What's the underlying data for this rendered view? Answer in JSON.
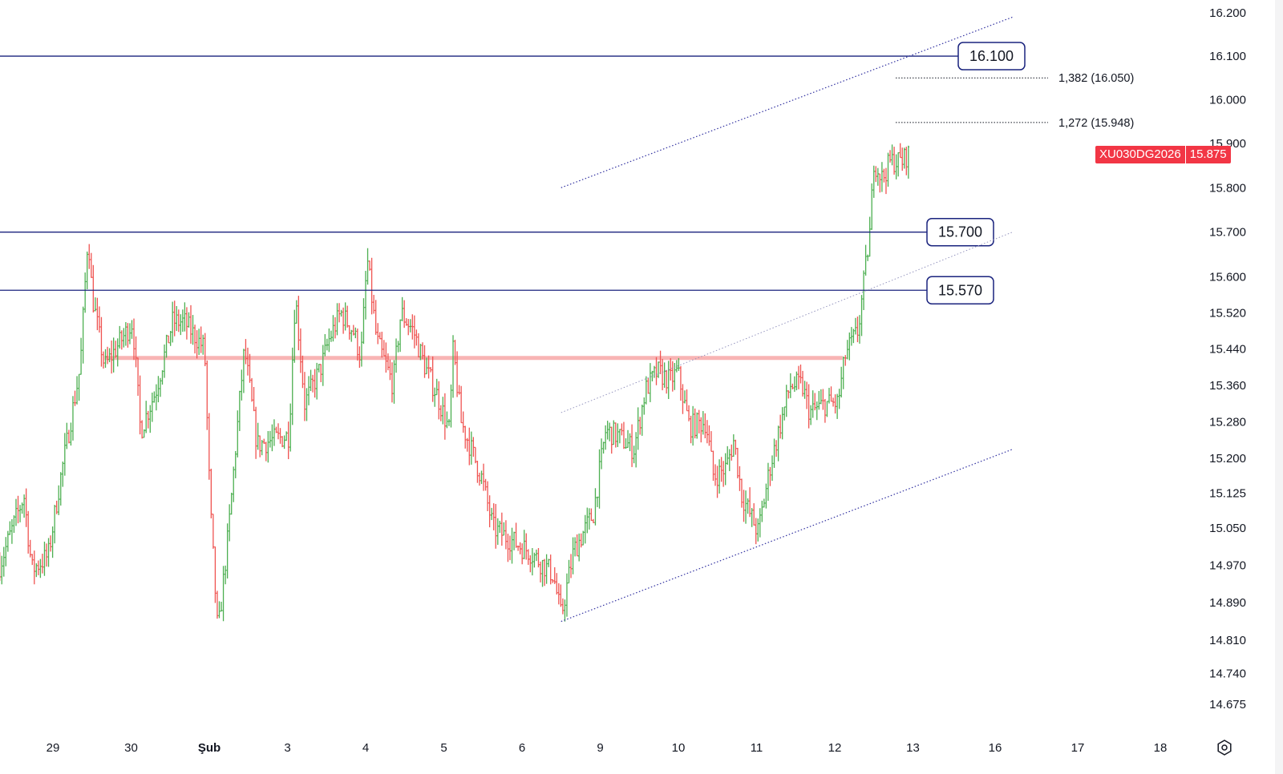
{
  "chart_data": {
    "type": "ohlc-bar",
    "symbol": "XU030DG2026",
    "last_price": "15.875",
    "y_scale": "log",
    "ylim": [
      14.64,
      16.22
    ],
    "y_ticks": [
      "16.200",
      "16.100",
      "16.000",
      "15.900",
      "15.800",
      "15.700",
      "15.600",
      "15.520",
      "15.440",
      "15.360",
      "15.280",
      "15.200",
      "15.125",
      "15.050",
      "14.970",
      "14.890",
      "14.810",
      "14.740",
      "14.675"
    ],
    "x_ticks": [
      "29",
      "30",
      "Şub",
      "3",
      "4",
      "5",
      "6",
      "9",
      "10",
      "11",
      "12",
      "13",
      "16",
      "17",
      "18"
    ],
    "price_path": [
      [
        -0.68,
        14.97
      ],
      [
        -0.37,
        15.12
      ],
      [
        -0.27,
        14.96
      ],
      [
        -0.06,
        14.99
      ],
      [
        0.09,
        15.15
      ],
      [
        0.35,
        15.4
      ],
      [
        0.45,
        15.7
      ],
      [
        0.5,
        15.56
      ],
      [
        0.66,
        15.4
      ],
      [
        1.02,
        15.5
      ],
      [
        1.12,
        15.26
      ],
      [
        1.32,
        15.35
      ],
      [
        1.53,
        15.5
      ],
      [
        1.68,
        15.5
      ],
      [
        1.94,
        15.44
      ],
      [
        2.01,
        15.1
      ],
      [
        2.11,
        14.82
      ],
      [
        2.25,
        15.05
      ],
      [
        2.4,
        15.35
      ],
      [
        2.45,
        15.44
      ],
      [
        2.61,
        15.23
      ],
      [
        2.81,
        15.24
      ],
      [
        3.02,
        15.25
      ],
      [
        3.1,
        15.56
      ],
      [
        3.22,
        15.32
      ],
      [
        3.43,
        15.4
      ],
      [
        3.53,
        15.46
      ],
      [
        3.68,
        15.52
      ],
      [
        3.84,
        15.48
      ],
      [
        3.94,
        15.42
      ],
      [
        4.02,
        15.64
      ],
      [
        4.14,
        15.46
      ],
      [
        4.35,
        15.36
      ],
      [
        4.45,
        15.52
      ],
      [
        4.61,
        15.48
      ],
      [
        4.76,
        15.4
      ],
      [
        4.91,
        15.34
      ],
      [
        5.07,
        15.26
      ],
      [
        5.12,
        15.44
      ],
      [
        5.22,
        15.28
      ],
      [
        5.48,
        15.16
      ],
      [
        5.63,
        15.05
      ],
      [
        5.89,
        15.02
      ],
      [
        6.09,
        15.0
      ],
      [
        6.4,
        14.95
      ],
      [
        6.5,
        14.86
      ],
      [
        6.66,
        15.0
      ],
      [
        6.91,
        15.08
      ],
      [
        7.07,
        15.26
      ],
      [
        7.22,
        15.25
      ],
      [
        7.43,
        15.22
      ],
      [
        7.58,
        15.35
      ],
      [
        7.73,
        15.39
      ],
      [
        7.89,
        15.37
      ],
      [
        7.99,
        15.39
      ],
      [
        8.14,
        15.27
      ],
      [
        8.35,
        15.28
      ],
      [
        8.45,
        15.16
      ],
      [
        8.61,
        15.18
      ],
      [
        8.71,
        15.24
      ],
      [
        8.81,
        15.12
      ],
      [
        9.02,
        15.04
      ],
      [
        9.17,
        15.18
      ],
      [
        9.27,
        15.25
      ],
      [
        9.43,
        15.36
      ],
      [
        9.58,
        15.36
      ],
      [
        9.68,
        15.3
      ],
      [
        9.89,
        15.32
      ],
      [
        10.04,
        15.32
      ],
      [
        10.14,
        15.43
      ],
      [
        10.3,
        15.48
      ],
      [
        10.38,
        15.6
      ],
      [
        10.45,
        15.7
      ],
      [
        10.5,
        15.86
      ],
      [
        10.61,
        15.82
      ],
      [
        10.71,
        15.86
      ],
      [
        10.86,
        15.86
      ],
      [
        10.96,
        15.88
      ]
    ],
    "horizontal_levels": [
      {
        "price": 16.1,
        "label": "16.100"
      },
      {
        "price": 15.7,
        "label": "15.700"
      },
      {
        "price": 15.57,
        "label": "15.570"
      }
    ],
    "zone_line": {
      "price": 15.42,
      "from": 0.66,
      "to": 10.1
    },
    "fib_levels": [
      {
        "price": 16.05,
        "label": "1,382 (16.050)"
      },
      {
        "price": 15.948,
        "label": "1,272 (15.948)"
      }
    ],
    "channel": {
      "from": 6.5,
      "to": 12.21,
      "upper": [
        15.8,
        16.19
      ],
      "middle": [
        15.3,
        15.7
      ],
      "lower": [
        14.85,
        15.22
      ]
    },
    "colors": {
      "up": "#4caf50",
      "down": "#ef5350",
      "level": "#1a237e",
      "zone": "#f8b4b4",
      "channel": "#3f3f9f",
      "price_tag": "#f23645"
    },
    "grid": false
  },
  "icons": {
    "settings": "settings-icon"
  }
}
